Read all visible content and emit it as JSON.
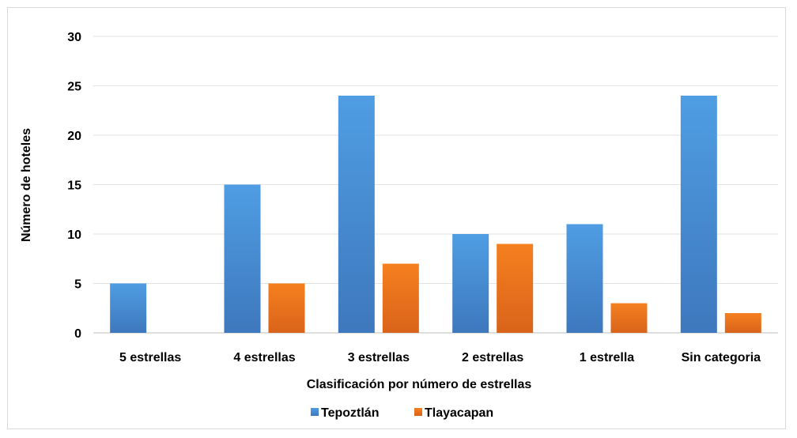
{
  "chart_data": {
    "type": "bar",
    "title": "",
    "xlabel": "Clasificación por número de estrellas",
    "ylabel": "Número de hoteles",
    "categories": [
      "5 estrellas",
      "4 estrellas",
      "3 estrellas",
      "2 estrellas",
      "1 estrella",
      "Sin categoria"
    ],
    "series": [
      {
        "name": "Tepoztlán",
        "values": [
          5,
          15,
          24,
          10,
          11,
          24
        ],
        "color": "#4a90d9"
      },
      {
        "name": "Tlayacapan",
        "values": [
          0,
          5,
          7,
          9,
          3,
          2
        ],
        "color": "#f07a22"
      }
    ],
    "ylim": [
      0,
      30
    ],
    "yticks": [
      0,
      5,
      10,
      15,
      20,
      25,
      30
    ],
    "grid": true,
    "legend": "bottom"
  }
}
